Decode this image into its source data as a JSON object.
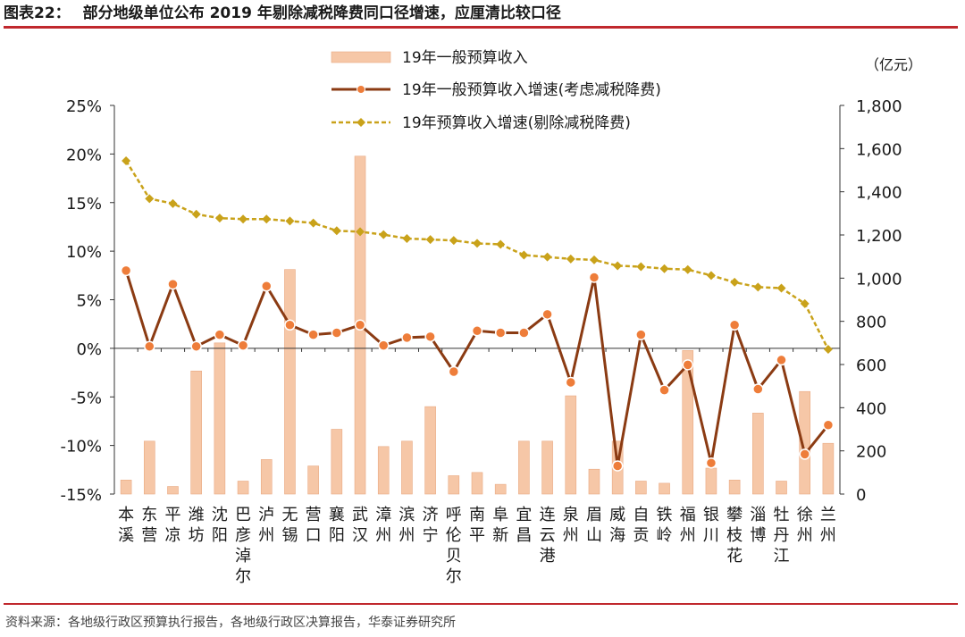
{
  "header": {
    "figure_label": "图表22：",
    "title": "部分地级单位公布 2019 年剔除减税降费同口径增速，应厘清比较口径"
  },
  "footer": {
    "source": "资料来源：各地级行政区预算执行报告，各地级行政区决算报告，华泰证券研究所"
  },
  "colors": {
    "accent_rule": "#c0282d",
    "bar": "#f6c7a7",
    "bar_stroke": "#e9a982",
    "line_tax": "#8b3b13",
    "line_tax_marker": "#ee7d3a",
    "line_excl": "#c9a21a"
  },
  "chart_data": {
    "type": "bar",
    "unit_right": "（亿元）",
    "categories": [
      "本溪",
      "东营",
      "平凉",
      "潍坊",
      "沈阳",
      "巴彦淖尔",
      "泸州",
      "无锡",
      "营口",
      "襄阳",
      "武汉",
      "漳州",
      "滨州",
      "济宁",
      "呼伦贝尔",
      "南平",
      "阜新",
      "宜昌",
      "连云港",
      "泉州",
      "眉山",
      "威海",
      "自贡",
      "铁岭",
      "福州",
      "银川",
      "攀枝花",
      "淄博",
      "牡丹江",
      "徐州",
      "兰州"
    ],
    "y_left": {
      "min": -0.15,
      "max": 0.25,
      "ticks": [
        "-15%",
        "-10%",
        "-5%",
        "0%",
        "5%",
        "10%",
        "15%",
        "20%",
        "25%"
      ]
    },
    "y_right": {
      "min": 0,
      "max": 1800,
      "ticks": [
        "0",
        "200",
        "400",
        "600",
        "800",
        "1,000",
        "1,200",
        "1,400",
        "1,600",
        "1,800"
      ]
    },
    "series": [
      {
        "name": "19年一般预算收入",
        "axis": "right",
        "type": "bar",
        "values": [
          65,
          245,
          35,
          570,
          700,
          60,
          160,
          1040,
          130,
          300,
          1565,
          220,
          245,
          405,
          85,
          100,
          45,
          245,
          245,
          455,
          115,
          245,
          60,
          50,
          665,
          120,
          65,
          375,
          60,
          475,
          235
        ]
      },
      {
        "name": "19年一般预算收入增速(考虑减税降费)",
        "axis": "left",
        "type": "line",
        "values": [
          0.08,
          0.002,
          0.066,
          0.002,
          0.014,
          0.003,
          0.064,
          0.024,
          0.014,
          0.016,
          0.024,
          0.003,
          0.011,
          0.012,
          -0.024,
          0.018,
          0.016,
          0.016,
          0.035,
          -0.035,
          0.073,
          -0.121,
          0.014,
          -0.043,
          -0.017,
          -0.118,
          0.024,
          -0.042,
          -0.012,
          -0.109,
          -0.079
        ]
      },
      {
        "name": "19年预算收入增速(剔除减税降费)",
        "axis": "left",
        "type": "line",
        "values": [
          0.193,
          0.154,
          0.149,
          0.138,
          0.134,
          0.133,
          0.133,
          0.131,
          0.129,
          0.121,
          0.12,
          0.117,
          0.113,
          0.112,
          0.111,
          0.108,
          0.107,
          0.096,
          0.094,
          0.092,
          0.091,
          0.085,
          0.084,
          0.082,
          0.081,
          0.075,
          0.068,
          0.063,
          0.062,
          0.046,
          -0.001
        ]
      }
    ],
    "legend_position": "top-center",
    "grid": false
  }
}
